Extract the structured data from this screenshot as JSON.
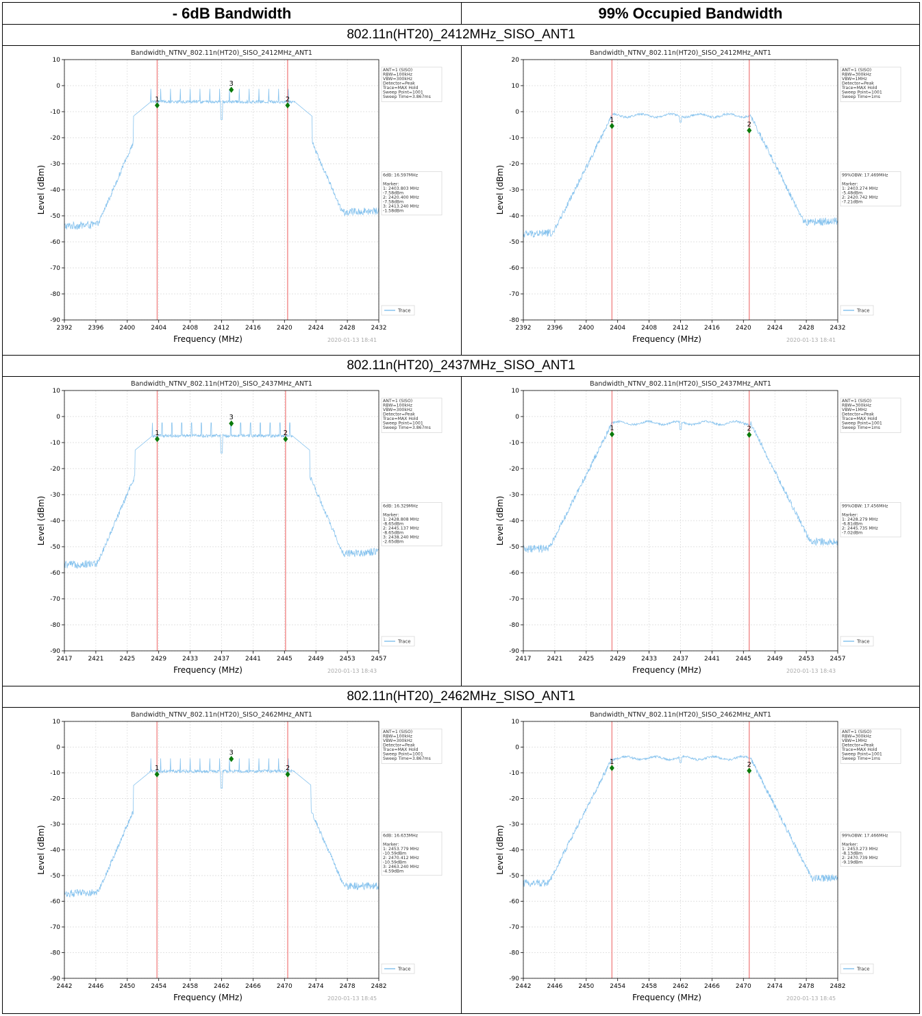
{
  "table": {
    "col_headers": [
      "- 6dB Bandwidth",
      "99% Occupied Bandwidth"
    ],
    "sections": [
      "802.11n(HT20)_2412MHz_SISO_ANT1",
      "802.11n(HT20)_2437MHz_SISO_ANT1",
      "802.11n(HT20)_2462MHz_SISO_ANT1"
    ]
  },
  "chart_data": [
    {
      "type": "line",
      "mode": "6db",
      "title": "Bandwidth_NTNV_802.11n(HT20)_SISO_2412MHz_ANT1",
      "xlabel": "Frequency (MHz)",
      "ylabel": "Level (dBm)",
      "xlim": [
        2392,
        2432
      ],
      "ylim": [
        -90,
        10
      ],
      "xticks": [
        2392,
        2396,
        2400,
        2404,
        2408,
        2412,
        2416,
        2420,
        2424,
        2428,
        2432
      ],
      "yticks": [
        10,
        0,
        -10,
        -20,
        -30,
        -40,
        -50,
        -60,
        -70,
        -80,
        -90
      ],
      "grid": true,
      "legend_placement": "lower-right",
      "legend": "Trace",
      "series_color": "#87c3ee",
      "info": [
        "ANT=1 (SISO)",
        "RBW=100kHz",
        "VBW=300kHz",
        "Detector=Peak",
        "Trace=MAX Hold",
        "Sweep Point=1001",
        "Sweep Time=3.867ms"
      ],
      "result": [
        "6dB: 16.597MHz",
        "",
        "Marker:",
        "1: 2403.803 MHz",
        "    -7.58dBm",
        "2: 2420.400 MHz",
        "    -7.58dBm",
        "3: 2413.240 MHz",
        "    -1.58dBm"
      ],
      "markers": [
        {
          "label": "1",
          "x": 2403.803,
          "y": -7.58
        },
        {
          "label": "2",
          "x": 2420.4,
          "y": -7.58
        },
        {
          "label": "3",
          "x": 2413.24,
          "y": -1.58
        }
      ],
      "vlines": [
        2403.803,
        2420.4
      ],
      "signal": {
        "center": 2412,
        "edge_low": 2403.0,
        "edge_high": 2421.3,
        "top": -6.2,
        "floor": -54,
        "floor_tilt": 6,
        "dip": -13,
        "spikes": true
      },
      "timestamp": "2020-01-13 18:41"
    },
    {
      "type": "line",
      "mode": "obw",
      "title": "Bandwidth_NTNV_802.11n(HT20)_SISO_2412MHz_ANT1",
      "xlabel": "Frequency (MHz)",
      "ylabel": "Level (dBm)",
      "xlim": [
        2392,
        2432
      ],
      "ylim": [
        -80,
        20
      ],
      "xticks": [
        2392,
        2396,
        2400,
        2404,
        2408,
        2412,
        2416,
        2420,
        2424,
        2428,
        2432
      ],
      "yticks": [
        20,
        10,
        0,
        -10,
        -20,
        -30,
        -40,
        -50,
        -60,
        -70,
        -80
      ],
      "grid": true,
      "legend_placement": "lower-right",
      "legend": "Trace",
      "series_color": "#87c3ee",
      "info": [
        "ANT=1 (SISO)",
        "RBW=300kHz",
        "VBW=1MHz",
        "Detector=Peak",
        "Trace=MAX Hold",
        "Sweep Point=1001",
        "Sweep Time=1ms"
      ],
      "result": [
        "99%OBW: 17.469MHz",
        "",
        "Marker:",
        "1: 2403.274 MHz",
        "    -5.48dBm",
        "2: 2420.742 MHz",
        "    -7.21dBm"
      ],
      "markers": [
        {
          "label": "1",
          "x": 2403.274,
          "y": -5.48
        },
        {
          "label": "2",
          "x": 2420.742,
          "y": -7.21
        }
      ],
      "vlines": [
        2403.274,
        2420.742
      ],
      "signal": {
        "center": 2412,
        "edge_low": 2403.3,
        "edge_high": 2420.9,
        "top": -1.5,
        "floor": -47,
        "floor_tilt": 5,
        "dip": -4,
        "spikes": false
      },
      "timestamp": "2020-01-13 18:41"
    },
    {
      "type": "line",
      "mode": "6db",
      "title": "Bandwidth_NTNV_802.11n(HT20)_SISO_2437MHz_ANT1",
      "xlabel": "Frequency (MHz)",
      "ylabel": "Level (dBm)",
      "xlim": [
        2417,
        2457
      ],
      "ylim": [
        -90,
        10
      ],
      "xticks": [
        2417,
        2421,
        2425,
        2429,
        2433,
        2437,
        2441,
        2445,
        2449,
        2453,
        2457
      ],
      "yticks": [
        10,
        0,
        -10,
        -20,
        -30,
        -40,
        -50,
        -60,
        -70,
        -80,
        -90
      ],
      "grid": true,
      "legend_placement": "lower-right",
      "legend": "Trace",
      "series_color": "#87c3ee",
      "info": [
        "ANT=1 (SISO)",
        "RBW=100kHz",
        "VBW=300kHz",
        "Detector=Peak",
        "Trace=MAX Hold",
        "Sweep Point=1001",
        "Sweep Time=3.867ms"
      ],
      "result": [
        "6dB: 16.329MHz",
        "",
        "Marker:",
        "1: 2428.808 MHz",
        "    -8.65dBm",
        "2: 2445.137 MHz",
        "    -8.65dBm",
        "3: 2438.240 MHz",
        "    -2.65dBm"
      ],
      "markers": [
        {
          "label": "1",
          "x": 2428.808,
          "y": -8.65
        },
        {
          "label": "2",
          "x": 2445.137,
          "y": -8.65
        },
        {
          "label": "3",
          "x": 2438.24,
          "y": -2.65
        }
      ],
      "vlines": [
        2428.808,
        2445.137
      ],
      "signal": {
        "center": 2437,
        "edge_low": 2428.2,
        "edge_high": 2446.0,
        "top": -7.4,
        "floor": -57,
        "floor_tilt": 5,
        "dip": -14,
        "spikes": true
      },
      "timestamp": "2020-01-13 18:43"
    },
    {
      "type": "line",
      "mode": "obw",
      "title": "Bandwidth_NTNV_802.11n(HT20)_SISO_2437MHz_ANT1",
      "xlabel": "Frequency (MHz)",
      "ylabel": "Level (dBm)",
      "xlim": [
        2417,
        2457
      ],
      "ylim": [
        -90,
        10
      ],
      "xticks": [
        2417,
        2421,
        2425,
        2429,
        2433,
        2437,
        2441,
        2445,
        2449,
        2453,
        2457
      ],
      "yticks": [
        10,
        0,
        -10,
        -20,
        -30,
        -40,
        -50,
        -60,
        -70,
        -80,
        -90
      ],
      "grid": true,
      "legend_placement": "lower-right",
      "legend": "Trace",
      "series_color": "#87c3ee",
      "info": [
        "ANT=1 (SISO)",
        "RBW=300kHz",
        "VBW=1MHz",
        "Detector=Peak",
        "Trace=MAX Hold",
        "Sweep Point=1001",
        "Sweep Time=1ms"
      ],
      "result": [
        "99%OBW: 17.456MHz",
        "",
        "Marker:",
        "1: 2428.279 MHz",
        "    -6.81dBm",
        "2: 2445.735 MHz",
        "    -7.02dBm"
      ],
      "markers": [
        {
          "label": "1",
          "x": 2428.279,
          "y": -6.81
        },
        {
          "label": "2",
          "x": 2445.735,
          "y": -7.02
        }
      ],
      "vlines": [
        2428.279,
        2445.735
      ],
      "signal": {
        "center": 2437,
        "edge_low": 2428.3,
        "edge_high": 2445.9,
        "top": -2.5,
        "floor": -51,
        "floor_tilt": 3,
        "dip": -5,
        "spikes": false
      },
      "timestamp": "2020-01-13 18:43"
    },
    {
      "type": "line",
      "mode": "6db",
      "title": "Bandwidth_NTNV_802.11n(HT20)_SISO_2462MHz_ANT1",
      "xlabel": "Frequency (MHz)",
      "ylabel": "Level (dBm)",
      "xlim": [
        2442,
        2482
      ],
      "ylim": [
        -90,
        10
      ],
      "xticks": [
        2442,
        2446,
        2450,
        2454,
        2458,
        2462,
        2466,
        2470,
        2474,
        2478,
        2482
      ],
      "yticks": [
        10,
        0,
        -10,
        -20,
        -30,
        -40,
        -50,
        -60,
        -70,
        -80,
        -90
      ],
      "grid": true,
      "legend_placement": "lower-right",
      "legend": "Trace",
      "series_color": "#87c3ee",
      "info": [
        "ANT=1 (SISO)",
        "RBW=100kHz",
        "VBW=300kHz",
        "Detector=Peak",
        "Trace=MAX Hold",
        "Sweep Point=1001",
        "Sweep Time=3.867ms"
      ],
      "result": [
        "6dB: 16.633MHz",
        "",
        "Marker:",
        "1: 2453.779 MHz",
        "    -10.59dBm",
        "2: 2470.412 MHz",
        "    -10.59dBm",
        "3: 2463.240 MHz",
        "    -4.59dBm"
      ],
      "markers": [
        {
          "label": "1",
          "x": 2453.779,
          "y": -10.59
        },
        {
          "label": "2",
          "x": 2470.412,
          "y": -10.59
        },
        {
          "label": "3",
          "x": 2463.24,
          "y": -4.59
        }
      ],
      "vlines": [
        2453.779,
        2470.412
      ],
      "signal": {
        "center": 2462,
        "edge_low": 2453.0,
        "edge_high": 2471.2,
        "top": -9.4,
        "floor": -57,
        "floor_tilt": 3,
        "dip": -16,
        "spikes": true
      },
      "timestamp": "2020-01-13 18:45"
    },
    {
      "type": "line",
      "mode": "obw",
      "title": "Bandwidth_NTNV_802.11n(HT20)_SISO_2462MHz_ANT1",
      "xlabel": "Frequency (MHz)",
      "ylabel": "Level (dBm)",
      "xlim": [
        2442,
        2482
      ],
      "ylim": [
        -90,
        10
      ],
      "xticks": [
        2442,
        2446,
        2450,
        2454,
        2458,
        2462,
        2466,
        2470,
        2474,
        2478,
        2482
      ],
      "yticks": [
        10,
        0,
        -10,
        -20,
        -30,
        -40,
        -50,
        -60,
        -70,
        -80,
        -90
      ],
      "grid": true,
      "legend_placement": "lower-right",
      "legend": "Trace",
      "series_color": "#87c3ee",
      "info": [
        "ANT=1 (SISO)",
        "RBW=300kHz",
        "VBW=1MHz",
        "Detector=Peak",
        "Trace=MAX Hold",
        "Sweep Point=1001",
        "Sweep Time=1ms"
      ],
      "result": [
        "99%OBW: 17.466MHz",
        "",
        "Marker:",
        "1: 2453.273 MHz",
        "    -8.13dBm",
        "2: 2470.739 MHz",
        "    -9.19dBm"
      ],
      "markers": [
        {
          "label": "1",
          "x": 2453.273,
          "y": -8.13
        },
        {
          "label": "2",
          "x": 2470.739,
          "y": -9.19
        }
      ],
      "vlines": [
        2453.273,
        2470.739
      ],
      "signal": {
        "center": 2462,
        "edge_low": 2453.3,
        "edge_high": 2470.9,
        "top": -4.3,
        "floor": -53,
        "floor_tilt": 2,
        "dip": -6,
        "spikes": false
      },
      "timestamp": "2020-01-13 18:45"
    }
  ]
}
